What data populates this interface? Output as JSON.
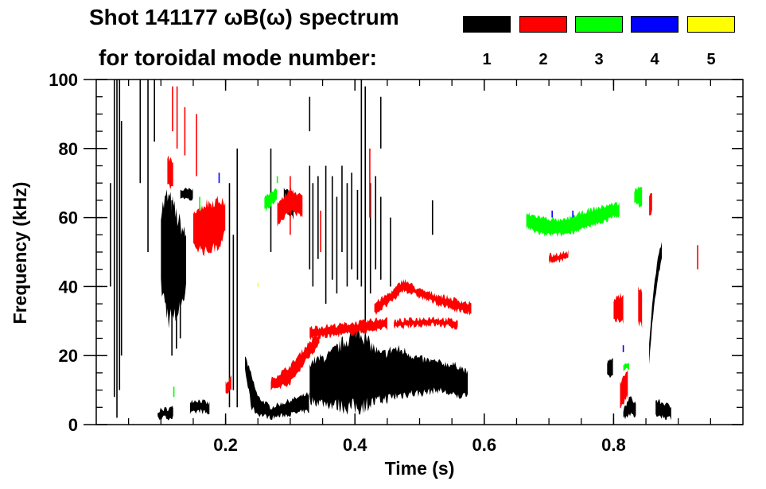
{
  "title": {
    "line1": "Shot 141177 ωB(ω) spectrum",
    "line2": "for toroidal mode number:"
  },
  "chart_data": {
    "type": "heatmap",
    "title": "Shot 141177 ωB(ω) spectrum for toroidal mode number:",
    "xlabel": "Time (s)",
    "ylabel": "Frequency (kHz)",
    "xlim": [
      0,
      1.0
    ],
    "ylim": [
      0,
      100
    ],
    "xticks": [
      {
        "v": 0.2,
        "label": "0.2"
      },
      {
        "v": 0.4,
        "label": "0.4"
      },
      {
        "v": 0.6,
        "label": "0.6"
      },
      {
        "v": 0.8,
        "label": "0.8"
      }
    ],
    "yticks": [
      {
        "v": 0,
        "label": "0"
      },
      {
        "v": 20,
        "label": "20"
      },
      {
        "v": 40,
        "label": "40"
      },
      {
        "v": 60,
        "label": "60"
      },
      {
        "v": 80,
        "label": "80"
      },
      {
        "v": 100,
        "label": "100"
      }
    ],
    "legend_placement": "top-right",
    "series": [
      {
        "name": "1",
        "color": "#000000",
        "streaks": [
          [
            0.028,
            8,
            100
          ],
          [
            0.032,
            2,
            100
          ],
          [
            0.036,
            10,
            100
          ],
          [
            0.039,
            20,
            88
          ],
          [
            0.022,
            40,
            70
          ],
          [
            0.068,
            70,
            100
          ],
          [
            0.08,
            50,
            100
          ],
          [
            0.09,
            82,
            100
          ],
          [
            0.117,
            20,
            65
          ],
          [
            0.124,
            22,
            60
          ],
          [
            0.13,
            25,
            55
          ],
          [
            0.206,
            5,
            70
          ],
          [
            0.212,
            10,
            55
          ],
          [
            0.218,
            5,
            80
          ],
          [
            0.33,
            45,
            75
          ],
          [
            0.335,
            40,
            70
          ],
          [
            0.343,
            48,
            72
          ],
          [
            0.355,
            35,
            75
          ],
          [
            0.365,
            42,
            72
          ],
          [
            0.372,
            38,
            66
          ],
          [
            0.38,
            50,
            75
          ],
          [
            0.388,
            40,
            70
          ],
          [
            0.395,
            45,
            73
          ],
          [
            0.404,
            42,
            68
          ],
          [
            0.41,
            40,
            100
          ],
          [
            0.416,
            30,
            98
          ],
          [
            0.424,
            38,
            70
          ],
          [
            0.432,
            45,
            72
          ],
          [
            0.44,
            42,
            66
          ],
          [
            0.455,
            40,
            60
          ],
          [
            0.27,
            50,
            80
          ],
          [
            0.44,
            80,
            95
          ],
          [
            0.33,
            85,
            95
          ],
          [
            0.52,
            55,
            65
          ]
        ],
        "bands": [
          [
            [
              0.1,
              40,
              62
            ],
            [
              0.11,
              32,
              66
            ],
            [
              0.12,
              30,
              62
            ],
            [
              0.13,
              35,
              58
            ],
            [
              0.14,
              40,
              54
            ]
          ],
          [
            [
              0.13,
              66,
              68
            ],
            [
              0.15,
              65,
              68
            ]
          ],
          [
            [
              0.095,
              2,
              4
            ],
            [
              0.12,
              2,
              5
            ]
          ],
          [
            [
              0.145,
              3,
              7
            ],
            [
              0.16,
              4,
              7
            ],
            [
              0.175,
              3,
              6
            ]
          ],
          [
            [
              0.23,
              16,
              20
            ],
            [
              0.24,
              5,
              14
            ],
            [
              0.25,
              3,
              8
            ],
            [
              0.27,
              2,
              5
            ],
            [
              0.3,
              3,
              7
            ],
            [
              0.33,
              4,
              9
            ]
          ],
          [
            [
              0.29,
              62,
              68
            ],
            [
              0.305,
              60,
              67
            ]
          ],
          [
            [
              0.33,
              7,
              18
            ],
            [
              0.36,
              6,
              20
            ],
            [
              0.39,
              5,
              25
            ],
            [
              0.405,
              5,
              28
            ],
            [
              0.42,
              6,
              24
            ],
            [
              0.44,
              7,
              20
            ],
            [
              0.46,
              8,
              22
            ],
            [
              0.48,
              9,
              21
            ],
            [
              0.5,
              9,
              19
            ],
            [
              0.53,
              10,
              18
            ],
            [
              0.56,
              8,
              17
            ],
            [
              0.575,
              9,
              15
            ]
          ],
          [
            [
              0.815,
              2,
              4
            ],
            [
              0.825,
              3,
              8
            ],
            [
              0.835,
              2,
              6
            ]
          ],
          [
            [
              0.865,
              3,
              7
            ],
            [
              0.88,
              2,
              6
            ],
            [
              0.89,
              2,
              5
            ]
          ],
          [
            [
              0.855,
              18,
              24
            ],
            [
              0.86,
              30,
              36
            ],
            [
              0.868,
              42,
              48
            ],
            [
              0.875,
              48,
              53
            ]
          ],
          [
            [
              0.79,
              14,
              18
            ],
            [
              0.8,
              14,
              19
            ]
          ]
        ]
      },
      {
        "name": "2",
        "color": "#ff0000",
        "streaks": [
          [
            0.125,
            80,
            98
          ],
          [
            0.137,
            78,
            92
          ],
          [
            0.118,
            85,
            98
          ],
          [
            0.155,
            72,
            90
          ],
          [
            0.3,
            55,
            72
          ],
          [
            0.347,
            50,
            62
          ],
          [
            0.423,
            60,
            80
          ],
          [
            0.93,
            45,
            52
          ]
        ],
        "bands": [
          [
            [
              0.11,
              70,
              78
            ],
            [
              0.12,
              68,
              75
            ]
          ],
          [
            [
              0.15,
              52,
              62
            ],
            [
              0.17,
              50,
              64
            ],
            [
              0.19,
              52,
              65
            ],
            [
              0.2,
              56,
              64
            ]
          ],
          [
            [
              0.2,
              9,
              12
            ],
            [
              0.21,
              10,
              14
            ]
          ],
          [
            [
              0.27,
              10,
              13
            ],
            [
              0.3,
              12,
              17
            ],
            [
              0.33,
              20,
              24
            ],
            [
              0.345,
              23,
              26
            ]
          ],
          [
            [
              0.28,
              58,
              64
            ],
            [
              0.3,
              62,
              68
            ],
            [
              0.32,
              60,
              66
            ]
          ],
          [
            [
              0.33,
              25,
              28
            ],
            [
              0.38,
              26,
              29
            ],
            [
              0.42,
              27,
              30
            ],
            [
              0.45,
              28,
              31
            ]
          ],
          [
            [
              0.43,
              32,
              35
            ],
            [
              0.46,
              36,
              39
            ],
            [
              0.475,
              39,
              42
            ],
            [
              0.5,
              37,
              39
            ],
            [
              0.54,
              34,
              37
            ],
            [
              0.58,
              32,
              35
            ]
          ],
          [
            [
              0.46,
              28,
              30
            ],
            [
              0.52,
              29,
              31
            ],
            [
              0.56,
              28,
              30
            ]
          ],
          [
            [
              0.7,
              47,
              49
            ],
            [
              0.73,
              48,
              50
            ]
          ],
          [
            [
              0.8,
              30,
              36
            ],
            [
              0.815,
              30,
              38
            ]
          ],
          [
            [
              0.838,
              30,
              40
            ],
            [
              0.845,
              28,
              38
            ]
          ],
          [
            [
              0.81,
              5,
              12
            ],
            [
              0.822,
              8,
              16
            ]
          ],
          [
            [
              0.855,
              60,
              66
            ],
            [
              0.86,
              62,
              67
            ]
          ]
        ]
      },
      {
        "name": "3",
        "color": "#00ff00",
        "streaks": [
          [
            0.16,
            62,
            66
          ],
          [
            0.28,
            70,
            72
          ],
          [
            0.12,
            8,
            11
          ]
        ],
        "bands": [
          [
            [
              0.665,
              57,
              61
            ],
            [
              0.69,
              55,
              60
            ],
            [
              0.72,
              55,
              59
            ],
            [
              0.76,
              57,
              62
            ],
            [
              0.8,
              60,
              64
            ],
            [
              0.81,
              61,
              64
            ]
          ],
          [
            [
              0.832,
              64,
              68
            ],
            [
              0.845,
              63,
              69
            ]
          ],
          [
            [
              0.815,
              16,
              18
            ],
            [
              0.825,
              16,
              18
            ]
          ],
          [
            [
              0.26,
              62,
              66
            ],
            [
              0.28,
              65,
              68
            ]
          ]
        ]
      },
      {
        "name": "4",
        "color": "#0000ff",
        "streaks": [
          [
            0.19,
            70,
            73
          ],
          [
            0.705,
            60,
            62
          ],
          [
            0.737,
            60,
            62
          ],
          [
            0.815,
            21,
            23
          ]
        ],
        "bands": []
      },
      {
        "name": "5",
        "color": "#ffff00",
        "streaks": [
          [
            0.25,
            40,
            41
          ]
        ],
        "bands": []
      }
    ]
  }
}
